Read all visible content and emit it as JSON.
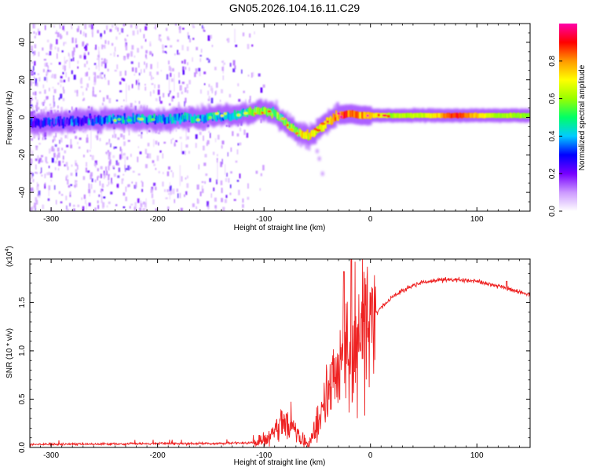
{
  "title": "GN05.2026.104.16.11.C29",
  "chart_data": [
    {
      "type": "heatmap",
      "xlabel": "Height of straight line (km)",
      "ylabel": "Frequency (Hz)",
      "xlim": [
        -320,
        150
      ],
      "ylim": [
        -50,
        50
      ],
      "xticks": [
        -300,
        -200,
        -100,
        0,
        100
      ],
      "xtick_labels": [
        "-300",
        "-200",
        "-100",
        "0",
        "100"
      ],
      "yticks": [
        -40,
        -20,
        0,
        20,
        40
      ],
      "ytick_labels": [
        "-40",
        "-20",
        "0",
        "20",
        "40"
      ],
      "colorbar": {
        "label": "Normalized spectral amplitude",
        "range": [
          0,
          1
        ],
        "ticks": [
          0,
          0.2,
          0.4,
          0.6,
          0.8
        ],
        "tick_labels": [
          "0.0",
          "0.2",
          "0.4",
          "0.6",
          "0.8"
        ],
        "colors": [
          "#ffffff",
          "#cc99ff",
          "#7700ff",
          "#0000ff",
          "#00ccff",
          "#00ff66",
          "#99ff00",
          "#ffff00",
          "#ff9900",
          "#ff0000",
          "#ff00aa"
        ]
      },
      "ridge": {
        "x": [
          -320,
          -280,
          -240,
          -200,
          -160,
          -130,
          -110,
          -100,
          -90,
          -80,
          -70,
          -60,
          -55,
          -50,
          -40,
          -30,
          -20,
          -10,
          0,
          20,
          50,
          80,
          100,
          120,
          150
        ],
        "y": [
          -3,
          -2,
          -1,
          -1,
          0,
          1,
          3,
          4,
          2,
          -3,
          -8,
          -10,
          -9,
          -7,
          -2,
          1,
          2,
          1,
          1,
          1,
          1,
          1,
          1,
          1,
          1
        ],
        "amplitude": [
          0.25,
          0.3,
          0.35,
          0.4,
          0.4,
          0.45,
          0.55,
          0.6,
          0.55,
          0.55,
          0.6,
          0.7,
          0.7,
          0.65,
          0.7,
          0.8,
          0.85,
          0.8,
          0.75,
          0.6,
          0.65,
          0.9,
          0.75,
          0.6,
          0.6
        ]
      },
      "noise_extent_x": [
        -320,
        -120
      ]
    },
    {
      "type": "line",
      "xlabel": "Height of straight line (km)",
      "ylabel": "SNR (10 * v/v)",
      "y_multiplier_label": "(x10",
      "y_multiplier_exp": "4",
      "y_multiplier_close": ")",
      "xlim": [
        -320,
        150
      ],
      "ylim": [
        0,
        1.95
      ],
      "xticks": [
        -300,
        -200,
        -100,
        0,
        100
      ],
      "xtick_labels": [
        "-300",
        "-200",
        "-100",
        "0",
        "100"
      ],
      "yticks": [
        0,
        0.5,
        1.0,
        1.5
      ],
      "ytick_labels": [
        "0.0",
        "0.5",
        "1.0",
        "1.5"
      ],
      "color": "#ee2222",
      "series": [
        {
          "name": "SNR",
          "x": [
            -320,
            -250,
            -200,
            -150,
            -110,
            -100,
            -90,
            -80,
            -75,
            -70,
            -65,
            -60,
            -55,
            -50,
            -45,
            -40,
            -35,
            -30,
            -25,
            -20,
            -15,
            -10,
            -5,
            0,
            10,
            20,
            30,
            40,
            50,
            60,
            80,
            100,
            120,
            140,
            150
          ],
          "y": [
            0.03,
            0.035,
            0.04,
            0.04,
            0.05,
            0.08,
            0.15,
            0.25,
            0.3,
            0.18,
            0.08,
            0.05,
            0.1,
            0.25,
            0.45,
            0.55,
            0.7,
            0.8,
            0.95,
            1.05,
            1.1,
            1.15,
            1.2,
            1.3,
            1.45,
            1.55,
            1.62,
            1.68,
            1.71,
            1.73,
            1.74,
            1.72,
            1.67,
            1.61,
            1.58
          ]
        }
      ]
    }
  ]
}
